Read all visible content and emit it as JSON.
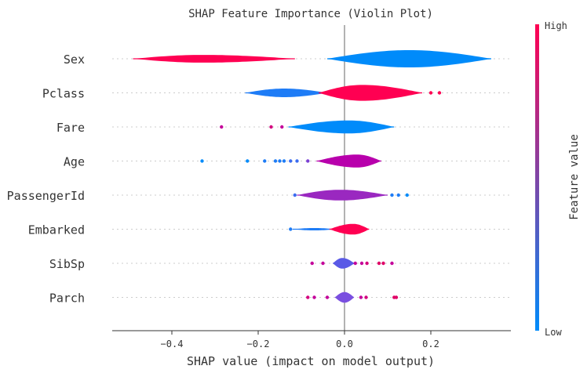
{
  "chart_data": {
    "type": "violin",
    "title": "SHAP Feature Importance (Violin Plot)",
    "xlabel": "SHAP value (impact on model output)",
    "xlim": [
      -0.53,
      0.38
    ],
    "xticks": [
      -0.4,
      -0.2,
      0.0,
      0.2
    ],
    "xtick_labels": [
      "−0.4",
      "−0.2",
      "0.0",
      "0.2"
    ],
    "features": [
      {
        "name": "Sex",
        "segments": [
          {
            "x0": -0.49,
            "x1": -0.115,
            "peak": -0.33,
            "amp": 0.45,
            "color": "#ff0052"
          },
          {
            "x0": -0.04,
            "x1": 0.34,
            "peak": 0.15,
            "amp": 1.0,
            "color": "#008bfa"
          }
        ],
        "outliers": []
      },
      {
        "name": "Pclass",
        "segments": [
          {
            "x0": -0.23,
            "x1": -0.04,
            "peak": -0.14,
            "amp": 0.5,
            "color": "#1e7cf6"
          },
          {
            "x0": -0.06,
            "x1": 0.18,
            "peak": 0.04,
            "amp": 0.92,
            "color": "#ff0052"
          }
        ],
        "outliers": [
          {
            "x": 0.2,
            "color": "#ff0052"
          },
          {
            "x": 0.22,
            "color": "#ff0052"
          }
        ]
      },
      {
        "name": "Fare",
        "segments": [
          {
            "x0": -0.13,
            "x1": 0.115,
            "peak": 0.01,
            "amp": 0.75,
            "color": "#008bfa"
          }
        ],
        "outliers": [
          {
            "x": -0.285,
            "color": "#c4009a"
          },
          {
            "x": -0.17,
            "color": "#d4007e"
          },
          {
            "x": -0.145,
            "color": "#c4009a"
          }
        ]
      },
      {
        "name": "Age",
        "segments": [
          {
            "x0": -0.065,
            "x1": 0.085,
            "peak": 0.03,
            "amp": 0.75,
            "color": "#b800ac"
          }
        ],
        "outliers": [
          {
            "x": -0.33,
            "color": "#008bfa"
          },
          {
            "x": -0.225,
            "color": "#008bfa"
          },
          {
            "x": -0.185,
            "color": "#1e7cf6"
          },
          {
            "x": -0.16,
            "color": "#1e7cf6"
          },
          {
            "x": -0.15,
            "color": "#1e7cf6"
          },
          {
            "x": -0.14,
            "color": "#1e7cf6"
          },
          {
            "x": -0.125,
            "color": "#3b6cf0"
          },
          {
            "x": -0.11,
            "color": "#3b6cf0"
          },
          {
            "x": -0.085,
            "color": "#7a3fd4"
          }
        ]
      },
      {
        "name": "PassengerId",
        "segments": [
          {
            "x0": -0.11,
            "x1": 0.1,
            "peak": -0.01,
            "amp": 0.62,
            "color": "#9a28c0"
          }
        ],
        "outliers": [
          {
            "x": -0.115,
            "color": "#3b6cf0"
          },
          {
            "x": 0.11,
            "color": "#1e7cf6"
          },
          {
            "x": 0.125,
            "color": "#1e7cf6"
          },
          {
            "x": 0.145,
            "color": "#008bfa"
          }
        ]
      },
      {
        "name": "Embarked",
        "segments": [
          {
            "x0": -0.12,
            "x1": -0.02,
            "peak": -0.07,
            "amp": 0.14,
            "color": "#1e7cf6"
          },
          {
            "x0": -0.035,
            "x1": 0.057,
            "peak": 0.02,
            "amp": 0.62,
            "color": "#ff0052"
          }
        ],
        "outliers": [
          {
            "x": -0.125,
            "color": "#1e7cf6"
          }
        ]
      },
      {
        "name": "SibSp",
        "segments": [
          {
            "x0": -0.027,
            "x1": 0.023,
            "peak": -0.005,
            "amp": 0.62,
            "color": "#5a5ae6"
          }
        ],
        "outliers": [
          {
            "x": -0.075,
            "color": "#c4009a"
          },
          {
            "x": -0.05,
            "color": "#c4009a"
          },
          {
            "x": 0.025,
            "color": "#c4009a"
          },
          {
            "x": 0.04,
            "color": "#c4009a"
          },
          {
            "x": 0.052,
            "color": "#d4007e"
          },
          {
            "x": 0.08,
            "color": "#e00066"
          },
          {
            "x": 0.09,
            "color": "#e00066"
          },
          {
            "x": 0.11,
            "color": "#c4009a"
          }
        ]
      },
      {
        "name": "Parch",
        "segments": [
          {
            "x0": -0.022,
            "x1": 0.022,
            "peak": 0.0,
            "amp": 0.62,
            "color": "#7a4fe0"
          }
        ],
        "outliers": [
          {
            "x": -0.085,
            "color": "#d4007e"
          },
          {
            "x": -0.07,
            "color": "#c4009a"
          },
          {
            "x": -0.04,
            "color": "#c4009a"
          },
          {
            "x": 0.038,
            "color": "#c4009a"
          },
          {
            "x": 0.05,
            "color": "#d4007e"
          },
          {
            "x": 0.115,
            "color": "#e00066"
          },
          {
            "x": 0.12,
            "color": "#e00066"
          }
        ]
      }
    ],
    "colorbar": {
      "label": "Feature value",
      "high_label": "High",
      "low_label": "Low",
      "high_color": "#ff0052",
      "low_color": "#008bfa"
    }
  }
}
